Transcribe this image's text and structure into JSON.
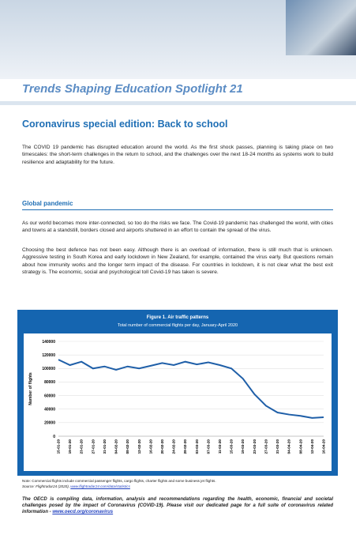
{
  "header": {
    "title": "Trends Shaping Education Spotlight 21"
  },
  "heading": "Coronavirus special edition: Back to school",
  "intro": "The COVID 19 pandemic has disrupted education around the world. As the first shock passes, planning is taking place on two timescales: the short-term challenges in the return to school, and the challenges over the next 18-24 months as systems work to build resilience and adaptability for the future.",
  "section": {
    "title": "Global pandemic",
    "paragraphs": [
      "As our world becomes more inter-connected, so too do the risks we face. The Covid-19 pandemic has challenged the world, with cities and towns at a standstill, borders closed and airports shuttered in an effort to contain the spread of the virus.",
      "Choosing the best defence has not been easy. Although there is an overload of information, there is still much that is unknown. Aggressive testing in South Korea and early lockdown in New Zealand, for example, contained the virus early. But questions remain about how immunity works and the longer term impact of the disease. For countries in lockdown, it is not clear what the best exit strategy is. The economic, social and psychological toll Covid-19 has taken is severe."
    ]
  },
  "chart_data": {
    "type": "line",
    "title": "Figure 1. Air traffic patterns",
    "subtitle": "Total number of commercial flights per day, January-April 2020",
    "ylabel": "Number of flights",
    "categories": [
      "15-01-20",
      "19-01-20",
      "23-01-20",
      "27-01-20",
      "31-01-20",
      "04-02-20",
      "08-02-20",
      "12-02-20",
      "16-02-20",
      "20-02-20",
      "24-02-20",
      "28-02-20",
      "03-03-20",
      "07-03-20",
      "11-03-20",
      "15-03-20",
      "19-03-20",
      "23-03-20",
      "27-03-20",
      "31-03-20",
      "04-04-20",
      "08-04-20",
      "12-04-20",
      "16-04-20"
    ],
    "values": [
      113000,
      105000,
      110000,
      100000,
      103000,
      98000,
      103000,
      100000,
      104000,
      108000,
      105000,
      110000,
      106000,
      109000,
      105000,
      100000,
      85000,
      62000,
      45000,
      35000,
      32000,
      30000,
      27000,
      28000
    ],
    "color": "#1f5fa8",
    "ylim": [
      0,
      140000
    ],
    "yticks": [
      0,
      20000,
      40000,
      60000,
      80000,
      100000,
      120000,
      140000
    ],
    "grid": true
  },
  "note": "Note: Commercial flights include commercial passenger flights, cargo flights, charter flights and some business jet flights.",
  "source": {
    "text": "Source: Flightradar24 (2020), ",
    "link": "www.flightradar24.com/data/statistics"
  },
  "footer": {
    "text": "The OECD is compiling data, information, analysis and recommendations regarding the health, economic, financial and societal challenges posed by the impact of Coronavirus (COVID-19). Please visit our dedicated page for a full suite of coronavirus related information - ",
    "link": "www.oecd.org/coronavirus"
  }
}
